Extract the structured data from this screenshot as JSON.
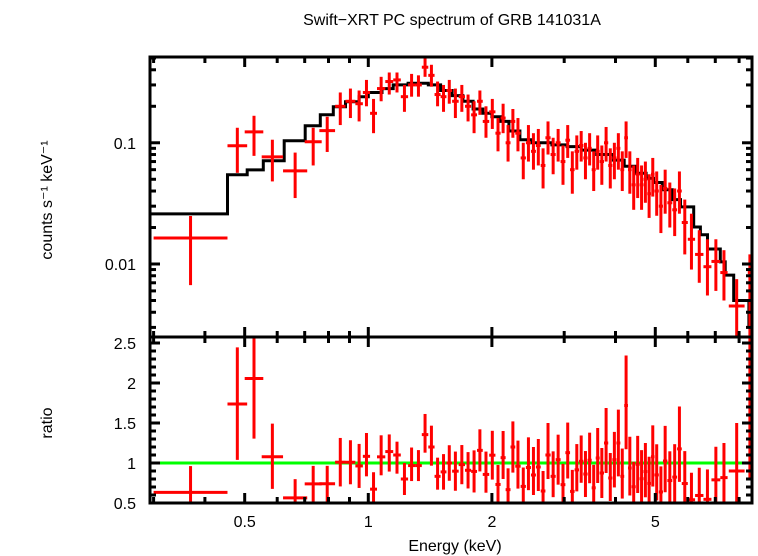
{
  "chart_data": {
    "type": "scatter",
    "title": "Swift−XRT PC spectrum of GRB 141031A",
    "xlabel": "Energy (keV)",
    "xscale": "log",
    "xlim": [
      0.294,
      8.6
    ],
    "x_tick_labels": [
      {
        "v": 0.5,
        "t": "0.5"
      },
      {
        "v": 1,
        "t": "1"
      },
      {
        "v": 2,
        "t": "2"
      },
      {
        "v": 5,
        "t": "5"
      }
    ],
    "colors": {
      "data": "#ff0000",
      "model": "#000000",
      "unity": "#00ff00"
    },
    "panels": {
      "spectrum": {
        "ylabel": "counts s⁻¹ keV⁻¹",
        "yscale": "log",
        "ylim": [
          0.0025,
          0.51
        ],
        "y_tick_labels": [
          {
            "v": 0.1,
            "t": "0.1"
          },
          {
            "v": 0.01,
            "t": "0.01"
          }
        ],
        "series": [
          {
            "name": "data",
            "style": "crosses",
            "points_format": [
              "e_lo",
              "e_hi",
              "y",
              "y_lo",
              "y_hi"
            ],
            "points": [
              [
                0.3,
                0.454,
                0.0164,
                0.0067,
                0.0249
              ],
              [
                0.454,
                0.507,
                0.0945,
                0.0565,
                0.133
              ],
              [
                0.5,
                0.555,
                0.123,
                0.078,
                0.167
              ],
              [
                0.55,
                0.62,
                0.0766,
                0.048,
                0.106
              ],
              [
                0.62,
                0.71,
                0.0587,
                0.035,
                0.083
              ],
              [
                0.7,
                0.77,
                0.102,
                0.065,
                0.133
              ],
              [
                0.76,
                0.83,
                0.126,
                0.084,
                0.164
              ],
              [
                0.83,
                0.88,
                0.2,
                0.14,
                0.26
              ],
              [
                0.88,
                0.93,
                0.22,
                0.16,
                0.28
              ],
              [
                0.93,
                0.97,
                0.21,
                0.15,
                0.27
              ],
              [
                0.97,
                1.01,
                0.26,
                0.2,
                0.33
              ],
              [
                1.01,
                1.05,
                0.175,
                0.12,
                0.23
              ],
              [
                1.05,
                1.1,
                0.28,
                0.22,
                0.35
              ],
              [
                1.1,
                1.15,
                0.32,
                0.25,
                0.38
              ],
              [
                1.15,
                1.2,
                0.33,
                0.26,
                0.38
              ],
              [
                1.2,
                1.25,
                0.24,
                0.18,
                0.3
              ],
              [
                1.25,
                1.3,
                0.3,
                0.24,
                0.37
              ],
              [
                1.3,
                1.35,
                0.3,
                0.24,
                0.36
              ],
              [
                1.35,
                1.4,
                0.42,
                0.35,
                0.5
              ],
              [
                1.4,
                1.45,
                0.36,
                0.29,
                0.44
              ],
              [
                1.45,
                1.5,
                0.25,
                0.2,
                0.32
              ],
              [
                1.5,
                1.55,
                0.24,
                0.18,
                0.3
              ],
              [
                1.55,
                1.6,
                0.27,
                0.21,
                0.33
              ],
              [
                1.6,
                1.66,
                0.22,
                0.16,
                0.28
              ],
              [
                1.66,
                1.72,
                0.24,
                0.18,
                0.3
              ],
              [
                1.72,
                1.78,
                0.2,
                0.15,
                0.25
              ],
              [
                1.78,
                1.84,
                0.17,
                0.12,
                0.22
              ],
              [
                1.84,
                1.9,
                0.22,
                0.17,
                0.27
              ],
              [
                1.9,
                1.97,
                0.15,
                0.11,
                0.2
              ],
              [
                1.97,
                2.04,
                0.18,
                0.13,
                0.23
              ],
              [
                2.04,
                2.1,
                0.12,
                0.085,
                0.16
              ],
              [
                2.1,
                2.16,
                0.16,
                0.12,
                0.21
              ],
              [
                2.16,
                2.22,
                0.1,
                0.07,
                0.14
              ],
              [
                2.22,
                2.28,
                0.15,
                0.11,
                0.19
              ],
              [
                2.28,
                2.35,
                0.12,
                0.085,
                0.16
              ],
              [
                2.35,
                2.42,
                0.075,
                0.05,
                0.1
              ],
              [
                2.42,
                2.49,
                0.1,
                0.07,
                0.14
              ],
              [
                2.49,
                2.56,
                0.085,
                0.06,
                0.12
              ],
              [
                2.56,
                2.63,
                0.095,
                0.065,
                0.13
              ],
              [
                2.63,
                2.7,
                0.065,
                0.042,
                0.09
              ],
              [
                2.7,
                2.78,
                0.11,
                0.08,
                0.15
              ],
              [
                2.78,
                2.86,
                0.08,
                0.055,
                0.11
              ],
              [
                2.86,
                2.94,
                0.1,
                0.07,
                0.13
              ],
              [
                2.94,
                3.02,
                0.07,
                0.045,
                0.095
              ],
              [
                3.02,
                3.1,
                0.105,
                0.075,
                0.14
              ],
              [
                3.1,
                3.18,
                0.06,
                0.038,
                0.085
              ],
              [
                3.18,
                3.26,
                0.085,
                0.06,
                0.115
              ],
              [
                3.26,
                3.34,
                0.095,
                0.07,
                0.125
              ],
              [
                3.34,
                3.42,
                0.075,
                0.05,
                0.1
              ],
              [
                3.42,
                3.5,
                0.09,
                0.065,
                0.12
              ],
              [
                3.5,
                3.58,
                0.06,
                0.04,
                0.085
              ],
              [
                3.58,
                3.66,
                0.085,
                0.06,
                0.115
              ],
              [
                3.66,
                3.75,
                0.07,
                0.045,
                0.095
              ],
              [
                3.75,
                3.84,
                0.1,
                0.07,
                0.135
              ],
              [
                3.84,
                3.93,
                0.065,
                0.042,
                0.09
              ],
              [
                3.93,
                4.02,
                0.075,
                0.05,
                0.1
              ],
              [
                4.02,
                4.11,
                0.09,
                0.06,
                0.12
              ],
              [
                4.11,
                4.2,
                0.06,
                0.04,
                0.085
              ],
              [
                4.2,
                4.29,
                0.11,
                0.075,
                0.15
              ],
              [
                4.29,
                4.38,
                0.06,
                0.038,
                0.085
              ],
              [
                4.38,
                4.48,
                0.045,
                0.028,
                0.065
              ],
              [
                4.48,
                4.58,
                0.055,
                0.035,
                0.075
              ],
              [
                4.58,
                4.68,
                0.045,
                0.028,
                0.065
              ],
              [
                4.68,
                4.78,
                0.05,
                0.032,
                0.07
              ],
              [
                4.78,
                4.88,
                0.038,
                0.024,
                0.055
              ],
              [
                4.88,
                4.98,
                0.055,
                0.036,
                0.075
              ],
              [
                4.98,
                5.1,
                0.04,
                0.025,
                0.058
              ],
              [
                5.1,
                5.22,
                0.03,
                0.018,
                0.045
              ],
              [
                5.22,
                5.35,
                0.042,
                0.026,
                0.06
              ],
              [
                5.35,
                5.5,
                0.032,
                0.02,
                0.047
              ],
              [
                5.5,
                5.65,
                0.028,
                0.017,
                0.042
              ],
              [
                5.65,
                5.8,
                0.04,
                0.026,
                0.058
              ],
              [
                5.8,
                6.0,
                0.022,
                0.012,
                0.034
              ],
              [
                6.0,
                6.25,
                0.016,
                0.009,
                0.026
              ],
              [
                6.25,
                6.55,
                0.012,
                0.007,
                0.019
              ],
              [
                6.55,
                6.85,
                0.0095,
                0.0055,
                0.016
              ],
              [
                6.85,
                7.2,
                0.0105,
                0.006,
                0.016
              ],
              [
                7.2,
                7.5,
                0.0085,
                0.005,
                0.013
              ],
              [
                7.55,
                8.25,
                0.0045,
                0.0025,
                0.0075
              ],
              [
                8.4,
                8.6,
                0.0085,
                0.0025,
                0.012
              ]
            ]
          },
          {
            "name": "model",
            "style": "step",
            "steps_format": [
              "e_start",
              "y"
            ],
            "steps": [
              [
                0.294,
                0.0259
              ],
              [
                0.454,
                0.0544
              ],
              [
                0.507,
                0.0598
              ],
              [
                0.555,
                0.071
              ],
              [
                0.624,
                0.104
              ],
              [
                0.702,
                0.138
              ],
              [
                0.764,
                0.17
              ],
              [
                0.822,
                0.198
              ],
              [
                0.88,
                0.218
              ],
              [
                0.95,
                0.24
              ],
              [
                1.0,
                0.26
              ],
              [
                1.08,
                0.28
              ],
              [
                1.15,
                0.3
              ],
              [
                1.25,
                0.31
              ],
              [
                1.4,
                0.3
              ],
              [
                1.5,
                0.27
              ],
              [
                1.6,
                0.245
              ],
              [
                1.7,
                0.22
              ],
              [
                1.8,
                0.19
              ],
              [
                1.9,
                0.175
              ],
              [
                2.0,
                0.164
              ],
              [
                2.1,
                0.15
              ],
              [
                2.2,
                0.125
              ],
              [
                2.34,
                0.106
              ],
              [
                2.5,
                0.1
              ],
              [
                2.8,
                0.096
              ],
              [
                3.05,
                0.093
              ],
              [
                3.3,
                0.087
              ],
              [
                3.6,
                0.08
              ],
              [
                3.95,
                0.072
              ],
              [
                4.2,
                0.064
              ],
              [
                4.5,
                0.056
              ],
              [
                4.75,
                0.051
              ],
              [
                4.95,
                0.047
              ],
              [
                5.2,
                0.041
              ],
              [
                5.5,
                0.034
              ],
              [
                5.76,
                0.0296
              ],
              [
                6.2,
                0.0202
              ],
              [
                6.44,
                0.0174
              ],
              [
                6.7,
                0.0133
              ],
              [
                7.2,
                0.0104
              ],
              [
                7.4,
                0.0081
              ],
              [
                7.76,
                0.005
              ],
              [
                8.45,
                0.0031
              ]
            ],
            "end": 8.6
          }
        ]
      },
      "ratio": {
        "ylabel": "ratio",
        "yscale": "linear",
        "ylim": [
          0.5,
          2.575
        ],
        "y_tick_labels": [
          {
            "v": 0.5,
            "t": "0.5"
          },
          {
            "v": 1,
            "t": "1"
          },
          {
            "v": 1.5,
            "t": "1.5"
          },
          {
            "v": 2,
            "t": "2"
          },
          {
            "v": 2.5,
            "t": "2.5"
          }
        ],
        "reference_line": 1,
        "derived_from": "data / model"
      }
    }
  }
}
